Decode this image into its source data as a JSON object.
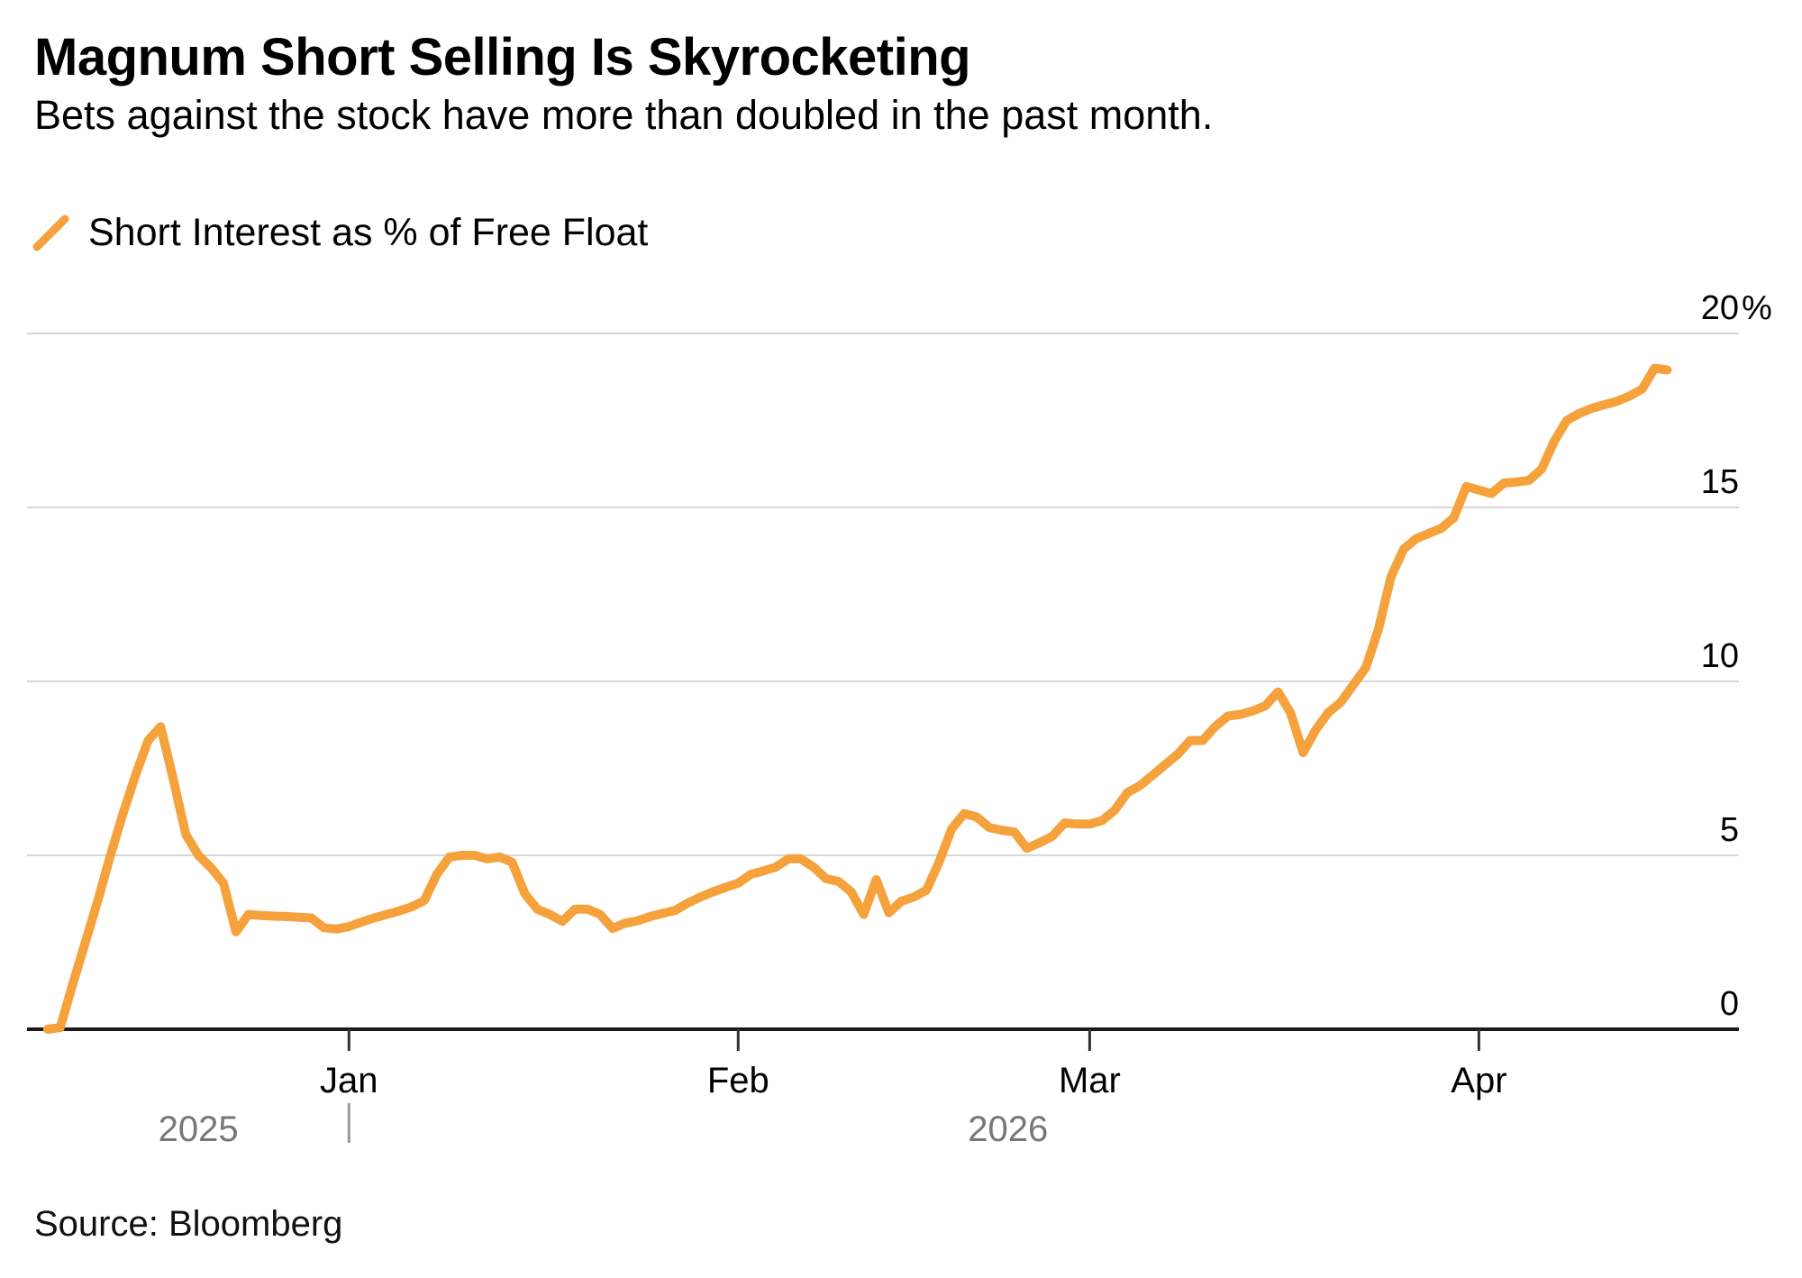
{
  "chart_data": {
    "type": "line",
    "title": "Magnum Short Selling Is Skyrocketing",
    "subtitle": "Bets against the stock have more than doubled in the past month.",
    "source": "Source: Bloomberg",
    "legend_position": "top-left",
    "grid": "horizontal-only",
    "colors": {
      "line": "#F5A13C",
      "gridline": "#D8D8D8",
      "axis": "#1A1A1A",
      "tick": "#333333",
      "year_label": "#777777",
      "year_divider": "#999999",
      "background": "#FFFFFF"
    },
    "y_axis": {
      "side": "right",
      "min": 0,
      "max": 20,
      "tick_interval": 5,
      "unit": "%",
      "ticks": [
        {
          "value": 0,
          "label": "0"
        },
        {
          "value": 5,
          "label": "5"
        },
        {
          "value": 10,
          "label": "10"
        },
        {
          "value": 15,
          "label": "15"
        },
        {
          "value": 20,
          "label": "20",
          "suffix": "%"
        }
      ]
    },
    "x_axis": {
      "type": "time",
      "range": [
        "2025-12-08",
        "2026-04-16"
      ],
      "month_ticks": [
        {
          "label": "Jan",
          "date": "2026-01-01"
        },
        {
          "label": "Feb",
          "date": "2026-02-01"
        },
        {
          "label": "Mar",
          "date": "2026-03-01"
        },
        {
          "label": "Apr",
          "date": "2026-04-01"
        }
      ],
      "year_labels": [
        {
          "label": "2025",
          "region": "before-jan"
        },
        {
          "label": "2026",
          "region": "after-jan"
        }
      ],
      "year_divider_date": "2026-01-01"
    },
    "series": [
      {
        "name": "Short Interest as % of Free Float",
        "color": "#F5A13C",
        "points": [
          [
            "2025-12-08",
            0.0
          ],
          [
            "2025-12-09",
            0.05
          ],
          [
            "2025-12-10",
            1.3
          ],
          [
            "2025-12-11",
            2.5
          ],
          [
            "2025-12-12",
            3.7
          ],
          [
            "2025-12-13",
            5.0
          ],
          [
            "2025-12-14",
            6.2
          ],
          [
            "2025-12-15",
            7.3
          ],
          [
            "2025-12-16",
            8.3
          ],
          [
            "2025-12-17",
            8.7
          ],
          [
            "2025-12-18",
            7.2
          ],
          [
            "2025-12-19",
            5.6
          ],
          [
            "2025-12-20",
            5.0
          ],
          [
            "2025-12-21",
            4.65
          ],
          [
            "2025-12-22",
            4.2
          ],
          [
            "2025-12-23",
            2.8
          ],
          [
            "2025-12-24",
            3.3
          ],
          [
            "2025-12-25",
            3.27
          ],
          [
            "2025-12-26",
            3.25
          ],
          [
            "2025-12-27",
            3.24
          ],
          [
            "2025-12-28",
            3.22
          ],
          [
            "2025-12-29",
            3.2
          ],
          [
            "2025-12-30",
            2.92
          ],
          [
            "2025-12-31",
            2.88
          ],
          [
            "2026-01-01",
            2.95
          ],
          [
            "2026-01-02",
            3.08
          ],
          [
            "2026-01-03",
            3.2
          ],
          [
            "2026-01-04",
            3.3
          ],
          [
            "2026-01-05",
            3.4
          ],
          [
            "2026-01-06",
            3.52
          ],
          [
            "2026-01-07",
            3.7
          ],
          [
            "2026-01-08",
            4.45
          ],
          [
            "2026-01-09",
            4.95
          ],
          [
            "2026-01-10",
            5.0
          ],
          [
            "2026-01-11",
            5.0
          ],
          [
            "2026-01-12",
            4.9
          ],
          [
            "2026-01-13",
            4.95
          ],
          [
            "2026-01-14",
            4.8
          ],
          [
            "2026-01-15",
            3.9
          ],
          [
            "2026-01-16",
            3.45
          ],
          [
            "2026-01-17",
            3.3
          ],
          [
            "2026-01-18",
            3.1
          ],
          [
            "2026-01-19",
            3.45
          ],
          [
            "2026-01-20",
            3.45
          ],
          [
            "2026-01-21",
            3.3
          ],
          [
            "2026-01-22",
            2.9
          ],
          [
            "2026-01-23",
            3.05
          ],
          [
            "2026-01-24",
            3.12
          ],
          [
            "2026-01-25",
            3.24
          ],
          [
            "2026-01-26",
            3.33
          ],
          [
            "2026-01-27",
            3.42
          ],
          [
            "2026-01-28",
            3.63
          ],
          [
            "2026-01-29",
            3.8
          ],
          [
            "2026-01-30",
            3.95
          ],
          [
            "2026-01-31",
            4.08
          ],
          [
            "2026-02-01",
            4.2
          ],
          [
            "2026-02-02",
            4.45
          ],
          [
            "2026-02-03",
            4.55
          ],
          [
            "2026-02-04",
            4.66
          ],
          [
            "2026-02-05",
            4.9
          ],
          [
            "2026-02-06",
            4.9
          ],
          [
            "2026-02-07",
            4.66
          ],
          [
            "2026-02-08",
            4.33
          ],
          [
            "2026-02-09",
            4.25
          ],
          [
            "2026-02-10",
            3.95
          ],
          [
            "2026-02-11",
            3.3
          ],
          [
            "2026-02-12",
            4.3
          ],
          [
            "2026-02-13",
            3.35
          ],
          [
            "2026-02-14",
            3.68
          ],
          [
            "2026-02-15",
            3.8
          ],
          [
            "2026-02-16",
            4.0
          ],
          [
            "2026-02-17",
            4.8
          ],
          [
            "2026-02-18",
            5.75
          ],
          [
            "2026-02-19",
            6.2
          ],
          [
            "2026-02-20",
            6.1
          ],
          [
            "2026-02-21",
            5.8
          ],
          [
            "2026-02-22",
            5.72
          ],
          [
            "2026-02-23",
            5.67
          ],
          [
            "2026-02-24",
            5.2
          ],
          [
            "2026-02-25",
            5.36
          ],
          [
            "2026-02-26",
            5.54
          ],
          [
            "2026-02-27",
            5.93
          ],
          [
            "2026-02-28",
            5.9
          ],
          [
            "2026-03-01",
            5.9
          ],
          [
            "2026-03-02",
            6.0
          ],
          [
            "2026-03-03",
            6.3
          ],
          [
            "2026-03-04",
            6.8
          ],
          [
            "2026-03-05",
            7.0
          ],
          [
            "2026-03-06",
            7.3
          ],
          [
            "2026-03-07",
            7.6
          ],
          [
            "2026-03-08",
            7.9
          ],
          [
            "2026-03-09",
            8.3
          ],
          [
            "2026-03-10",
            8.3
          ],
          [
            "2026-03-11",
            8.7
          ],
          [
            "2026-03-12",
            9.0
          ],
          [
            "2026-03-13",
            9.05
          ],
          [
            "2026-03-14",
            9.15
          ],
          [
            "2026-03-15",
            9.3
          ],
          [
            "2026-03-16",
            9.7
          ],
          [
            "2026-03-17",
            9.1
          ],
          [
            "2026-03-18",
            7.95
          ],
          [
            "2026-03-19",
            8.6
          ],
          [
            "2026-03-20",
            9.1
          ],
          [
            "2026-03-21",
            9.4
          ],
          [
            "2026-03-22",
            9.9
          ],
          [
            "2026-03-23",
            10.4
          ],
          [
            "2026-03-24",
            11.5
          ],
          [
            "2026-03-25",
            13.0
          ],
          [
            "2026-03-26",
            13.8
          ],
          [
            "2026-03-27",
            14.1
          ],
          [
            "2026-03-28",
            14.25
          ],
          [
            "2026-03-29",
            14.4
          ],
          [
            "2026-03-30",
            14.7
          ],
          [
            "2026-03-31",
            15.6
          ],
          [
            "2026-04-01",
            15.5
          ],
          [
            "2026-04-02",
            15.4
          ],
          [
            "2026-04-03",
            15.7
          ],
          [
            "2026-04-04",
            15.73
          ],
          [
            "2026-04-05",
            15.78
          ],
          [
            "2026-04-06",
            16.1
          ],
          [
            "2026-04-07",
            16.9
          ],
          [
            "2026-04-08",
            17.5
          ],
          [
            "2026-04-09",
            17.7
          ],
          [
            "2026-04-10",
            17.85
          ],
          [
            "2026-04-11",
            17.95
          ],
          [
            "2026-04-12",
            18.05
          ],
          [
            "2026-04-13",
            18.2
          ],
          [
            "2026-04-14",
            18.4
          ],
          [
            "2026-04-15",
            19.0
          ],
          [
            "2026-04-16",
            18.95
          ]
        ]
      }
    ]
  }
}
